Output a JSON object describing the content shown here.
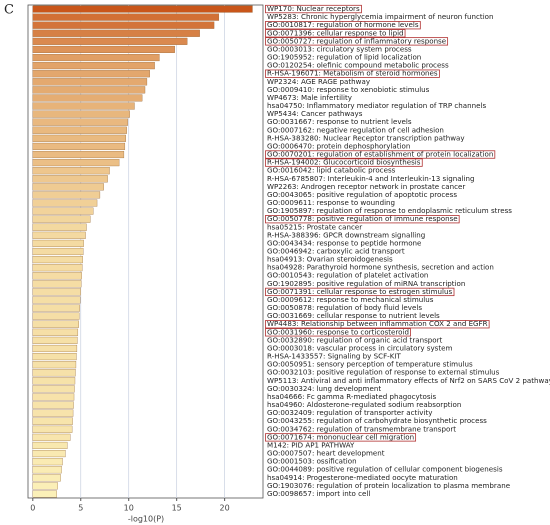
{
  "chart_data": {
    "type": "barh",
    "panel_label": "C",
    "xlabel": "-log10(P)",
    "categories": [
      "WP170: Nuclear receptors",
      "WP5283: Chronic hyperglycemia impairment of neuron function",
      "GO:0010817: regulation of hormone levels",
      "GO:0071396: cellular response to lipid",
      "GO:0050727: regulation of inflammatory response",
      "GO:0003013: circulatory system process",
      "GO:1905952: regulation of lipid localization",
      "GO:0120254: olefinic compound metabolic process",
      "R-HSA-196071: Metabolism of steroid hormones",
      "WP2324: AGE RAGE pathway",
      "GO:0009410: response to xenobiotic stimulus",
      "WP4673: Male infertility",
      "hsa04750: Inflammatory mediator regulation of TRP channels",
      "WP5434: Cancer pathways",
      "GO:0031667: response to nutrient levels",
      "GO:0007162: negative regulation of cell adhesion",
      "R-HSA-383280: Nuclear Receptor transcription pathway",
      "GO:0006470: protein dephosphorylation",
      "GO:0070201: regulation of establishment of protein localization",
      "R-HSA-194002: Glucocorticoid biosynthesis",
      "GO:0016042: lipid catabolic process",
      "R-HSA-6785807: Interleukin-4 and Interleukin-13 signaling",
      "WP2263: Androgen receptor network in prostate cancer",
      "GO:0043065: positive regulation of apoptotic process",
      "GO:0009611: response to wounding",
      "GO:1905897: regulation of response to endoplasmic reticulum stress",
      "GO:0050778: positive regulation of immune response",
      "hsa05215: Prostate cancer",
      "R-HSA-388396: GPCR downstream signalling",
      "GO:0043434: response to peptide hormone",
      "GO:0046942: carboxylic acid transport",
      "hsa04913: Ovarian steroidogenesis",
      "hsa04928: Parathyroid hormone synthesis, secretion and action",
      "GO:0010543: regulation of platelet activation",
      "GO:1902895: positive regulation of miRNA transcription",
      "GO:0071391: cellular response to estrogen stimulus",
      "GO:0009612: response to mechanical stimulus",
      "GO:0050878: regulation of body fluid levels",
      "GO:0031669: cellular response to nutrient levels",
      "WP4483: Relationship between inflammation COX 2 and EGFR",
      "GO:0031960: response to corticosteroid",
      "GO:0032890: regulation of organic acid transport",
      "GO:0003018: vascular process in circulatory system",
      "R-HSA-1433557: Signaling by SCF-KIT",
      "GO:0050951: sensory perception of temperature stimulus",
      "GO:0032103: positive regulation of response to external stimulus",
      "WP5113: Antiviral and anti inflammatory effects of Nrf2 on SARS CoV 2 pathway",
      "GO:0030324: lung development",
      "hsa04666: Fc gamma R-mediated phagocytosis",
      "hsa04960: Aldosterone-regulated sodium reabsorption",
      "GO:0032409: regulation of transporter activity",
      "GO:0043255: regulation of carbohydrate biosynthetic process",
      "GO:0034762: regulation of transmembrane transport",
      "GO:0071674: mononuclear cell migration",
      "M142: PID AP1 PATHWAY",
      "GO:0007507: heart development",
      "GO:0001503: ossification",
      "GO:0044089: positive regulation of cellular component biogenesis",
      "hsa04914: Progesterone-mediated oocyte maturation",
      "GO:1903076: regulation of protein localization to plasma membrane",
      "GO:0098657: import into cell"
    ],
    "values": [
      22.9,
      19.4,
      18.9,
      17.4,
      16.1,
      14.8,
      13.2,
      12.7,
      12.2,
      11.9,
      11.7,
      11.4,
      10.6,
      10.1,
      9.9,
      9.8,
      9.7,
      9.6,
      9.5,
      9.0,
      8.0,
      7.8,
      7.4,
      7.0,
      6.7,
      6.3,
      6.0,
      5.6,
      5.5,
      5.3,
      5.25,
      5.2,
      5.15,
      5.1,
      5.05,
      5.0,
      4.95,
      4.9,
      4.85,
      4.8,
      4.7,
      4.65,
      4.6,
      4.55,
      4.5,
      4.45,
      4.4,
      4.35,
      4.3,
      4.25,
      4.2,
      4.15,
      4.1,
      3.9,
      3.6,
      3.4,
      3.1,
      3.0,
      2.9,
      2.6,
      2.5
    ],
    "highlighted": [
      0,
      2,
      3,
      4,
      8,
      18,
      19,
      26,
      35,
      39,
      40,
      53
    ],
    "color_scale": [
      "#c9561a",
      "#fbf0b8"
    ],
    "highlight_color": "#b03030",
    "xlim": [
      -0.5,
      24
    ],
    "xticks": [
      0,
      5,
      10,
      15,
      20
    ],
    "grid": true
  }
}
